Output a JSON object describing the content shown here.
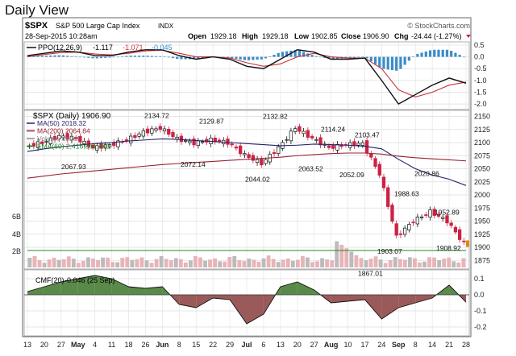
{
  "page": {
    "title": "Daily View",
    "watermark": "© StockCharts.com"
  },
  "header": {
    "symbol": "$SPX",
    "name": "S&P 500 Large Cap Index",
    "exchange": "INDX",
    "date": "28-Sep-2015 10:28am",
    "open_label": "Open",
    "open": "1929.18",
    "high_label": "High",
    "high": "1929.18",
    "low_label": "Low",
    "low": "1902.85",
    "close": "1906.90",
    "chg_label": "Chg",
    "chg": "-24.44 (-1.27%)"
  },
  "ppo": {
    "label": "PPO(12,26,9)",
    "v1": "-1.117",
    "v2": "-1.071",
    "v3": "-0.045",
    "ticks": [
      "0.5",
      "0.0",
      "-0.5",
      "-1.0",
      "-1.5",
      "-2.0"
    ],
    "colors": {
      "ppo": "#111111",
      "signal": "#cc3333",
      "hist": "#3a8dc8"
    }
  },
  "price": {
    "label": "$SPX (Daily) 1906.90",
    "legend": [
      {
        "name": "MA(50) 2018.32",
        "color": "#22226a"
      },
      {
        "name": "MA(200) 2064.84",
        "color": "#992233"
      },
      {
        "name": "Volume undef",
        "color": "#888888"
      },
      {
        "name": "EMA(60) 2,416,861,440",
        "color": "#228822"
      }
    ],
    "ticks": [
      "2150",
      "2125",
      "2100",
      "2075",
      "2050",
      "2025",
      "2000",
      "1975",
      "1950",
      "1925",
      "1900",
      "1875"
    ],
    "vol_ticks": [
      "6B",
      "4B",
      "2B"
    ],
    "annotations": [
      "2134.72",
      "2129.87",
      "2132.82",
      "2114.24",
      "2103.47",
      "2067.93",
      "2072.14",
      "2044.02",
      "2063.52",
      "2052.09",
      "2020.86",
      "1988.63",
      "1952.89",
      "1908.92",
      "1903.07",
      "1867.01"
    ],
    "last_price": "1906.90",
    "colors": {
      "up": "#111111",
      "down": "#cc2244",
      "ma50": "#22226a",
      "ma200": "#992233",
      "vol": "#e8b4b8",
      "ema": "#228822",
      "last": "#e08a00"
    }
  },
  "cmf": {
    "label": "CMF(20)",
    "value": "-0.046 (25 Sep)",
    "ticks": [
      "0.1",
      "0.0",
      "-0.1",
      "-0.2"
    ],
    "colors": {
      "pos": "#5a8a4a",
      "neg": "#9a5a5a"
    }
  },
  "xaxis": {
    "labels": [
      "13",
      "20",
      "27",
      "May",
      "4",
      "11",
      "18",
      "26",
      "Jun",
      "8",
      "15",
      "22",
      "29",
      "Jul",
      "6",
      "13",
      "20",
      "27",
      "Aug",
      "10",
      "17",
      "24",
      "Sep",
      "8",
      "14",
      "21",
      "28"
    ]
  },
  "chart_data": [
    {
      "type": "line",
      "title": "$SPX (Daily) 1906.90",
      "ylim": [
        1860,
        2160
      ],
      "x": [
        "13",
        "20",
        "27",
        "May",
        "4",
        "11",
        "18",
        "26",
        "Jun",
        "8",
        "15",
        "22",
        "29",
        "Jul",
        "6",
        "13",
        "20",
        "27",
        "Aug",
        "10",
        "17",
        "24",
        "Sep",
        "8",
        "14",
        "21",
        "28"
      ],
      "series": [
        {
          "name": "$SPX (Daily) 1906.90",
          "values": [
            2092,
            2100,
            2112,
            2108,
            2090,
            2095,
            2105,
            2120,
            2128,
            2107,
            2099,
            2105,
            2100,
            2076,
            2060,
            2090,
            2128,
            2108,
            2090,
            2096,
            2098,
            2040,
            1920,
            1950,
            1968,
            1950,
            1907
          ]
        },
        {
          "name": "MA(50) 2018.32",
          "values": [
            2083,
            2088,
            2092,
            2095,
            2098,
            2100,
            2103,
            2105,
            2107,
            2106,
            2104,
            2102,
            2100,
            2098,
            2096,
            2094,
            2095,
            2097,
            2096,
            2095,
            2093,
            2088,
            2068,
            2050,
            2038,
            2030,
            2018
          ]
        },
        {
          "name": "MA(200) 2064.84",
          "values": [
            2032,
            2036,
            2040,
            2043,
            2046,
            2049,
            2052,
            2055,
            2058,
            2060,
            2062,
            2064,
            2066,
            2068,
            2070,
            2072,
            2075,
            2077,
            2079,
            2080,
            2080,
            2078,
            2074,
            2071,
            2069,
            2067,
            2065
          ]
        }
      ]
    },
    {
      "type": "line",
      "title": "PPO(12,26,9)",
      "ylim": [
        -2.2,
        0.6
      ],
      "x": [
        "13",
        "20",
        "27",
        "May",
        "4",
        "11",
        "18",
        "26",
        "Jun",
        "8",
        "15",
        "22",
        "29",
        "Jul",
        "6",
        "13",
        "20",
        "27",
        "Aug",
        "10",
        "17",
        "24",
        "Sep",
        "8",
        "14",
        "21",
        "28"
      ],
      "series": [
        {
          "name": "PPO(12,26,9)",
          "values": [
            0.05,
            0.15,
            0.25,
            0.2,
            0.05,
            0.05,
            0.2,
            0.3,
            0.3,
            0.05,
            -0.1,
            0.0,
            -0.1,
            -0.4,
            -0.5,
            -0.1,
            0.3,
            0.2,
            -0.1,
            -0.1,
            -0.05,
            -1.0,
            -2.0,
            -1.6,
            -1.2,
            -0.9,
            -1.117
          ]
        },
        {
          "name": "Signal",
          "values": [
            0.0,
            0.1,
            0.18,
            0.2,
            0.12,
            0.08,
            0.15,
            0.25,
            0.28,
            0.15,
            0.0,
            0.0,
            -0.05,
            -0.25,
            -0.4,
            -0.3,
            0.0,
            0.15,
            0.0,
            -0.05,
            -0.05,
            -0.5,
            -1.4,
            -1.7,
            -1.5,
            -1.2,
            -1.071
          ]
        },
        {
          "name": "Histogram",
          "values": [
            0.05,
            0.05,
            0.07,
            0.0,
            -0.07,
            -0.03,
            0.05,
            0.05,
            0.02,
            -0.1,
            -0.1,
            0.0,
            -0.05,
            -0.15,
            -0.1,
            0.2,
            0.3,
            0.05,
            -0.1,
            -0.05,
            0.0,
            -0.5,
            -0.6,
            0.1,
            0.3,
            0.3,
            -0.045
          ]
        }
      ]
    },
    {
      "type": "area",
      "title": "CMF(20)",
      "ylim": [
        -0.25,
        0.15
      ],
      "x": [
        "13",
        "20",
        "27",
        "May",
        "4",
        "11",
        "18",
        "26",
        "Jun",
        "8",
        "15",
        "22",
        "29",
        "Jul",
        "6",
        "13",
        "20",
        "27",
        "Aug",
        "10",
        "17",
        "24",
        "Sep",
        "8",
        "14",
        "21",
        "28"
      ],
      "series": [
        {
          "name": "CMF(20)",
          "values": [
            0.02,
            0.05,
            0.08,
            0.1,
            0.12,
            0.1,
            0.05,
            0.04,
            0.05,
            -0.06,
            -0.08,
            -0.02,
            -0.03,
            -0.18,
            -0.12,
            0.05,
            0.08,
            0.03,
            -0.05,
            -0.04,
            -0.03,
            -0.15,
            -0.08,
            -0.05,
            -0.02,
            0.06,
            -0.046
          ]
        }
      ]
    }
  ]
}
